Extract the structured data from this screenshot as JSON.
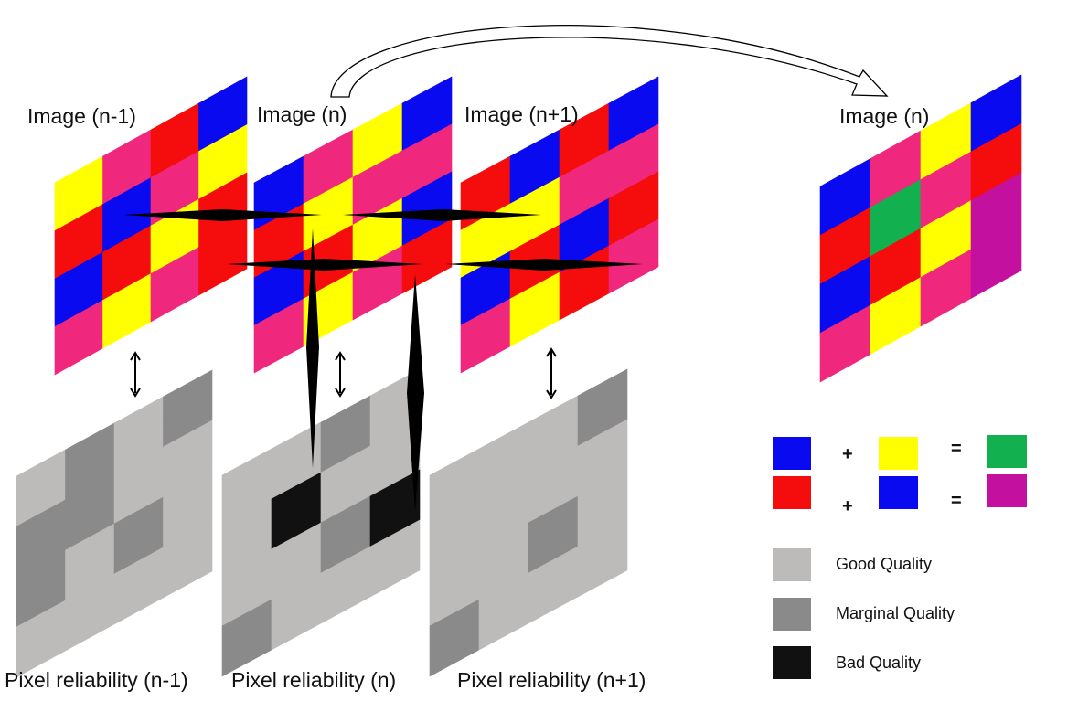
{
  "colors": {
    "blue": "#0a0af0",
    "red": "#f50d0d",
    "yellow": "#ffff00",
    "pink": "#f0287d",
    "green": "#12b04e",
    "magenta": "#c4109e",
    "good_gray": "#bdbaba",
    "marginal_gray": "#8a8a8a",
    "bad_black": "#111111"
  },
  "images": [
    {
      "label": "Image (n-1)",
      "grid": [
        [
          "Y",
          "P",
          "R",
          "B"
        ],
        [
          "R",
          "B",
          "P",
          "Y"
        ],
        [
          "B",
          "R",
          "Y",
          "R"
        ],
        [
          "P",
          "Y",
          "P",
          "R"
        ]
      ]
    },
    {
      "label": "Image (n)",
      "grid": [
        [
          "B",
          "P",
          "Y",
          "B"
        ],
        [
          "R",
          "Y",
          "P",
          "P"
        ],
        [
          "B",
          "R",
          "Y",
          "B"
        ],
        [
          "P",
          "Y",
          "P",
          "R"
        ]
      ]
    },
    {
      "label": "Image (n+1)",
      "grid": [
        [
          "R",
          "B",
          "R",
          "B"
        ],
        [
          "Y",
          "Y",
          "P",
          "P"
        ],
        [
          "B",
          "R",
          "B",
          "R"
        ],
        [
          "P",
          "Y",
          "R",
          "P"
        ]
      ]
    },
    {
      "label": "Image (n)",
      "grid": [
        [
          "B",
          "P",
          "Y",
          "B"
        ],
        [
          "R",
          "G",
          "P",
          "R"
        ],
        [
          "B",
          "R",
          "Y",
          "M"
        ],
        [
          "P",
          "Y",
          "P",
          "M"
        ]
      ]
    }
  ],
  "reliability": [
    {
      "label": "Pixel reliability (n-1)",
      "grid": [
        [
          "G",
          "M",
          "G",
          "M"
        ],
        [
          "M",
          "M",
          "G",
          "G"
        ],
        [
          "M",
          "G",
          "M",
          "G"
        ],
        [
          "G",
          "G",
          "G",
          "G"
        ]
      ]
    },
    {
      "label": "Pixel reliability (n)",
      "grid": [
        [
          "G",
          "G",
          "M",
          "G"
        ],
        [
          "G",
          "B",
          "G",
          "G"
        ],
        [
          "G",
          "G",
          "M",
          "B"
        ],
        [
          "M",
          "G",
          "G",
          "G"
        ]
      ]
    },
    {
      "label": "Pixel reliability (n+1)",
      "grid": [
        [
          "G",
          "G",
          "G",
          "M"
        ],
        [
          "G",
          "G",
          "G",
          "G"
        ],
        [
          "G",
          "G",
          "M",
          "G"
        ],
        [
          "M",
          "G",
          "G",
          "G"
        ]
      ]
    }
  ],
  "combination_legend": [
    {
      "a": "blue",
      "op1": "+",
      "b": "yellow",
      "op2": "=",
      "result": "green"
    },
    {
      "a": "red",
      "op1": "+",
      "b": "blue",
      "op2": "=",
      "result": "magenta"
    }
  ],
  "quality_legend": [
    {
      "color": "good_gray",
      "label": "Good Quality"
    },
    {
      "color": "marginal_gray",
      "label": "Marginal Quality"
    },
    {
      "color": "bad_black",
      "label": "Bad Quality"
    }
  ]
}
